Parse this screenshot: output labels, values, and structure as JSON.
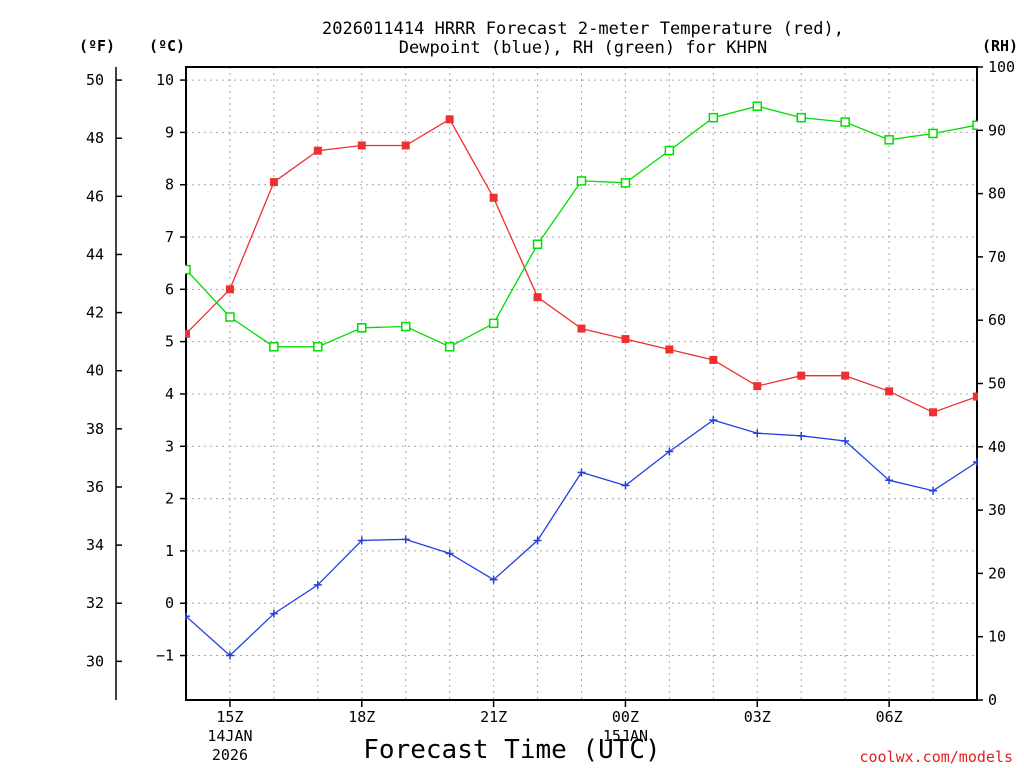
{
  "chart_data": {
    "type": "line",
    "title": "2026011414 HRRR Forecast 2-meter Temperature (red),",
    "title2": "Dewpoint (blue), RH (green) for KHPN",
    "xlabel": "Forecast Time (UTC)",
    "credit": "coolwx.com/models",
    "units": {
      "fahrenheit": "(ºF)",
      "celsius": "(ºC)",
      "rh": "(RH)"
    },
    "x": [
      14,
      15,
      16,
      17,
      18,
      19,
      20,
      21,
      22,
      23,
      24,
      25,
      26,
      27,
      28,
      29,
      30,
      31,
      32
    ],
    "xlim": [
      14,
      32
    ],
    "x_ticks": [
      {
        "x": 15,
        "lines": [
          "15Z",
          "14JAN",
          "2026"
        ]
      },
      {
        "x": 18,
        "lines": [
          "18Z"
        ]
      },
      {
        "x": 21,
        "lines": [
          "21Z"
        ]
      },
      {
        "x": 24,
        "lines": [
          "00Z",
          "15JAN"
        ]
      },
      {
        "x": 27,
        "lines": [
          "03Z"
        ]
      },
      {
        "x": 30,
        "lines": [
          "06Z"
        ]
      }
    ],
    "celsius_axis": {
      "ylim": [
        -1.85,
        10.25
      ],
      "ticks": [
        -1,
        0,
        1,
        2,
        3,
        4,
        5,
        6,
        7,
        8,
        9,
        10
      ],
      "labels": [
        "−1",
        "0",
        "1",
        "2",
        "3",
        "4",
        "5",
        "6",
        "7",
        "8",
        "9",
        "10"
      ]
    },
    "fahrenheit_axis": {
      "ticks": [
        30,
        32,
        34,
        36,
        38,
        40,
        42,
        44,
        46,
        48,
        50
      ],
      "labels": [
        "30",
        "32",
        "34",
        "36",
        "38",
        "40",
        "42",
        "44",
        "46",
        "48",
        "50"
      ]
    },
    "rh_axis": {
      "ylim": [
        0,
        100
      ],
      "ticks": [
        0,
        10,
        20,
        30,
        40,
        50,
        60,
        70,
        80,
        90,
        100
      ],
      "labels": [
        "0",
        "10",
        "20",
        "30",
        "40",
        "50",
        "60",
        "70",
        "80",
        "90",
        "100"
      ]
    },
    "series": [
      {
        "name": "Temperature",
        "unit": "C",
        "color": "#ee3030",
        "marker": "filled-square",
        "values": [
          5.15,
          6.0,
          8.05,
          8.65,
          8.75,
          8.75,
          9.25,
          7.75,
          5.85,
          5.25,
          5.05,
          4.85,
          4.65,
          4.15,
          4.35,
          4.35,
          4.05,
          3.65,
          3.95
        ]
      },
      {
        "name": "Dewpoint",
        "unit": "C",
        "color": "#2040e0",
        "marker": "plus",
        "values": [
          -0.25,
          -1.0,
          -0.2,
          0.35,
          1.2,
          1.22,
          0.95,
          0.45,
          1.2,
          2.5,
          2.25,
          2.9,
          3.5,
          3.25,
          3.2,
          3.1,
          2.35,
          2.15,
          2.7
        ]
      },
      {
        "name": "RH",
        "unit": "%",
        "color": "#00dd00",
        "marker": "open-square",
        "values": [
          68,
          60.5,
          55.8,
          55.8,
          58.8,
          59,
          55.8,
          59.5,
          72,
          82,
          81.7,
          86.8,
          92,
          93.8,
          92,
          91.3,
          88.5,
          89.5,
          90.8
        ]
      }
    ]
  }
}
